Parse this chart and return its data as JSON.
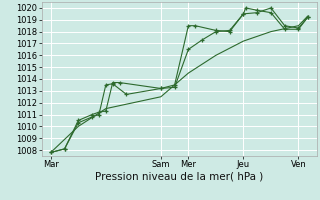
{
  "bg_color": "#ceeae4",
  "grid_color": "#ffffff",
  "line_color": "#2d6a2d",
  "xlabel": "Pression niveau de la mer( hPa )",
  "ylim": [
    1007.5,
    1020.5
  ],
  "yticks": [
    1008,
    1009,
    1010,
    1011,
    1012,
    1013,
    1014,
    1015,
    1016,
    1017,
    1018,
    1019,
    1020
  ],
  "xtick_labels": [
    "Mar",
    "Sam",
    "Mer",
    "Jeu",
    "Ven"
  ],
  "xtick_positions": [
    0,
    48,
    60,
    84,
    108
  ],
  "xlim": [
    -4,
    116
  ],
  "series1_x": [
    0,
    6,
    12,
    18,
    21,
    24,
    27,
    30,
    48,
    54,
    60,
    63,
    72,
    78,
    84,
    85,
    90,
    96,
    102,
    108,
    112
  ],
  "series1_y": [
    1007.8,
    1008.1,
    1010.5,
    1011.0,
    1011.2,
    1011.3,
    1013.7,
    1013.7,
    1013.2,
    1013.5,
    1018.5,
    1018.5,
    1018.1,
    1018.0,
    1019.5,
    1020.0,
    1019.8,
    1019.6,
    1018.2,
    1018.2,
    1019.2
  ],
  "series2_x": [
    0,
    6,
    12,
    18,
    21,
    24,
    27,
    33,
    48,
    54,
    60,
    66,
    72,
    78,
    84,
    90,
    96,
    102,
    108,
    112
  ],
  "series2_y": [
    1007.8,
    1008.1,
    1010.3,
    1010.8,
    1011.0,
    1013.5,
    1013.6,
    1012.7,
    1013.2,
    1013.3,
    1016.5,
    1017.3,
    1018.0,
    1018.1,
    1019.5,
    1019.6,
    1020.0,
    1018.5,
    1018.3,
    1019.2
  ],
  "series3_x": [
    0,
    12,
    24,
    48,
    60,
    72,
    84,
    96,
    108,
    112
  ],
  "series3_y": [
    1007.8,
    1010.0,
    1011.5,
    1012.5,
    1014.5,
    1016.0,
    1017.2,
    1018.0,
    1018.5,
    1019.3
  ],
  "vline_positions": [
    48,
    60,
    84,
    108
  ],
  "font_size": 6,
  "xlabel_fontsize": 7.5,
  "lw": 0.8,
  "ms": 3.0
}
